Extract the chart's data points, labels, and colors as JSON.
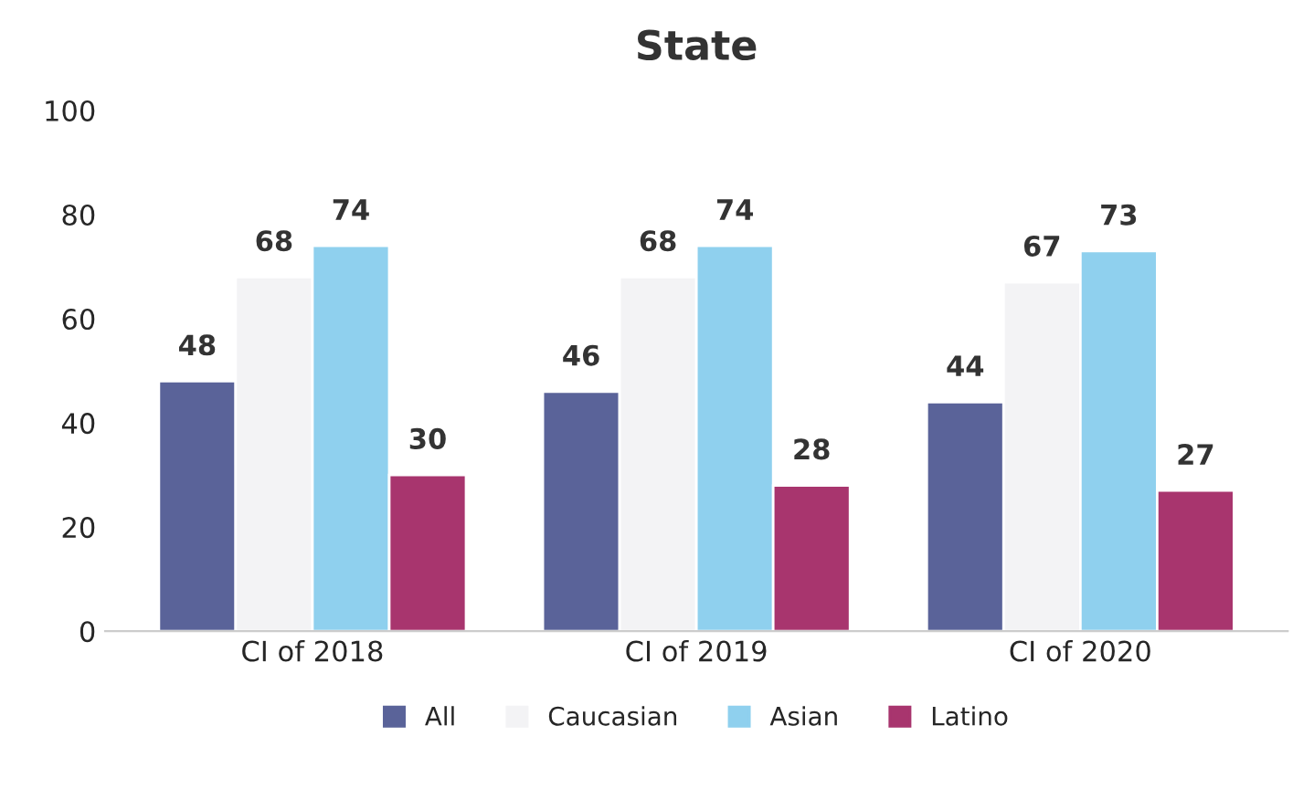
{
  "chart_data": {
    "type": "bar",
    "title": "State",
    "categories": [
      "CI of 2018",
      "CI of 2019",
      "CI of 2020"
    ],
    "series": [
      {
        "name": "All",
        "color": "#5a6399",
        "values": [
          48,
          46,
          44
        ]
      },
      {
        "name": "Caucasian",
        "color": "#f3f3f5",
        "values": [
          68,
          68,
          67
        ]
      },
      {
        "name": "Asian",
        "color": "#8fd0ee",
        "values": [
          74,
          74,
          73
        ]
      },
      {
        "name": "Latino",
        "color": "#a8356e",
        "values": [
          30,
          28,
          27
        ]
      }
    ],
    "ylim": [
      0,
      100
    ],
    "yticks": [
      0,
      20,
      40,
      60,
      80,
      100
    ],
    "data_labels": true,
    "grid": false,
    "legend": "bottom"
  }
}
